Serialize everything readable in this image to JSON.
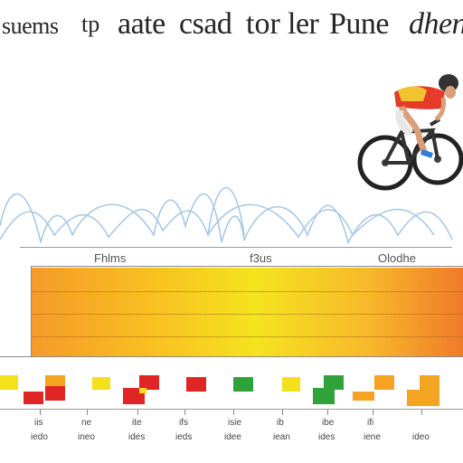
{
  "title": {
    "part1": "suems",
    "part2": "tp",
    "part3": "aate",
    "part4": "csad",
    "part5": "tor",
    "part6": "ler",
    "part7": "Pune",
    "part8": "dhen"
  },
  "column_labels": [
    "Fhlms",
    "f3us",
    "Olodhe"
  ],
  "axis_labels_row1": [
    "iis",
    "ne",
    "ite",
    "ifs",
    "isie",
    "ib",
    "ibe",
    "ifi"
  ],
  "axis_labels_row2": [
    "iedo",
    "ineo",
    "ides",
    "ieds",
    "idee",
    "iean",
    "ides",
    "iene",
    "ideo"
  ],
  "colors": {
    "band_left": "#f59a2a",
    "band_mid": "#f5e31e",
    "band_right": "#f07a2a",
    "block_yellow": "#f4e11a",
    "block_red": "#e02525",
    "block_orange": "#f4a420",
    "block_green": "#2fa33a",
    "wave": "#a9c9e6"
  }
}
